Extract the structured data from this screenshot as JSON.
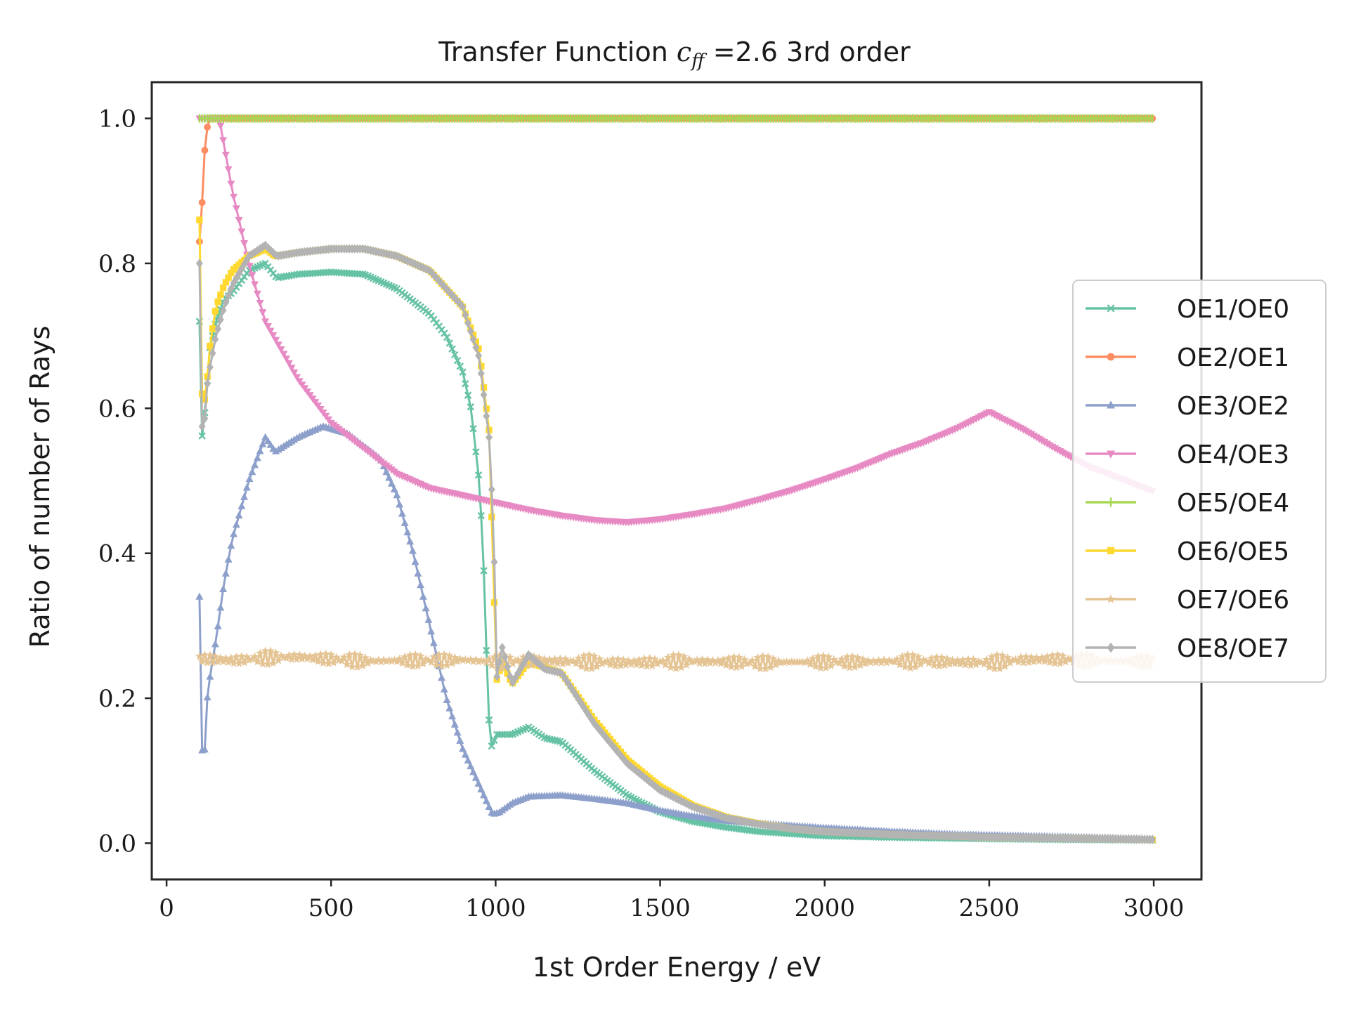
{
  "chart_data": {
    "type": "line",
    "title_main": "Transfer Function ",
    "title_math": "c",
    "title_math_sub": "ff",
    "title_rest": " =2.6 3rd order",
    "xlabel": "1st Order Energy / eV",
    "ylabel": "Ratio of number of Rays",
    "xlim": [
      -45,
      3145
    ],
    "ylim": [
      -0.05,
      1.05
    ],
    "xticks": [
      0,
      500,
      1000,
      1500,
      2000,
      2500,
      3000
    ],
    "xtick_labels": [
      "0",
      "500",
      "1000",
      "1500",
      "2000",
      "2500",
      "3000"
    ],
    "yticks": [
      0.0,
      0.2,
      0.4,
      0.6,
      0.8,
      1.0
    ],
    "ytick_labels": [
      "0.0",
      "0.2",
      "0.4",
      "0.6",
      "0.8",
      "1.0"
    ],
    "grid": false,
    "legend_position": "right",
    "series": [
      {
        "name": "OE1/OE0",
        "color": "#66c2a5",
        "marker": "x",
        "points": [
          [
            100,
            0.72
          ],
          [
            105,
            0.55
          ],
          [
            110,
            0.57
          ],
          [
            120,
            0.61
          ],
          [
            130,
            0.68
          ],
          [
            150,
            0.72
          ],
          [
            175,
            0.75
          ],
          [
            200,
            0.76
          ],
          [
            250,
            0.79
          ],
          [
            300,
            0.8
          ],
          [
            335,
            0.78
          ],
          [
            400,
            0.785
          ],
          [
            500,
            0.788
          ],
          [
            600,
            0.785
          ],
          [
            700,
            0.765
          ],
          [
            800,
            0.73
          ],
          [
            850,
            0.7
          ],
          [
            900,
            0.65
          ],
          [
            925,
            0.6
          ],
          [
            950,
            0.5
          ],
          [
            960,
            0.42
          ],
          [
            970,
            0.31
          ],
          [
            975,
            0.2
          ],
          [
            985,
            0.14
          ],
          [
            990,
            0.13
          ],
          [
            1000,
            0.15
          ],
          [
            1050,
            0.15
          ],
          [
            1100,
            0.16
          ],
          [
            1150,
            0.145
          ],
          [
            1200,
            0.14
          ],
          [
            1300,
            0.1
          ],
          [
            1400,
            0.066
          ],
          [
            1500,
            0.043
          ],
          [
            1600,
            0.03
          ],
          [
            1700,
            0.022
          ],
          [
            1800,
            0.016
          ],
          [
            2000,
            0.01
          ],
          [
            2200,
            0.008
          ],
          [
            2500,
            0.006
          ],
          [
            2700,
            0.005
          ],
          [
            3000,
            0.004
          ]
        ]
      },
      {
        "name": "OE2/OE1",
        "color": "#fc8d62",
        "marker": "o",
        "points": [
          [
            100,
            0.83
          ],
          [
            105,
            0.86
          ],
          [
            110,
            0.9
          ],
          [
            115,
            0.95
          ],
          [
            120,
            0.98
          ],
          [
            130,
            1.0
          ],
          [
            3000,
            1.0
          ]
        ]
      },
      {
        "name": "OE3/OE2",
        "color": "#8da0cb",
        "marker": "^",
        "points": [
          [
            100,
            0.34
          ],
          [
            105,
            0.17
          ],
          [
            110,
            0.1
          ],
          [
            115,
            0.12
          ],
          [
            125,
            0.21
          ],
          [
            150,
            0.28
          ],
          [
            175,
            0.36
          ],
          [
            200,
            0.42
          ],
          [
            250,
            0.5
          ],
          [
            300,
            0.56
          ],
          [
            330,
            0.54
          ],
          [
            400,
            0.56
          ],
          [
            475,
            0.575
          ],
          [
            550,
            0.565
          ],
          [
            650,
            0.53
          ],
          [
            700,
            0.48
          ],
          [
            750,
            0.4
          ],
          [
            800,
            0.3
          ],
          [
            850,
            0.2
          ],
          [
            900,
            0.13
          ],
          [
            950,
            0.08
          ],
          [
            990,
            0.04
          ],
          [
            1010,
            0.042
          ],
          [
            1050,
            0.055
          ],
          [
            1100,
            0.064
          ],
          [
            1200,
            0.066
          ],
          [
            1300,
            0.061
          ],
          [
            1400,
            0.055
          ],
          [
            1500,
            0.045
          ],
          [
            1600,
            0.037
          ],
          [
            1700,
            0.031
          ],
          [
            1800,
            0.027
          ],
          [
            2000,
            0.021
          ],
          [
            2200,
            0.016
          ],
          [
            2400,
            0.012
          ],
          [
            2600,
            0.01
          ],
          [
            2800,
            0.008
          ],
          [
            3000,
            0.006
          ]
        ]
      },
      {
        "name": "OE4/OE3",
        "color": "#e78ac3",
        "marker": "v",
        "points": [
          [
            100,
            1.0
          ],
          [
            160,
            1.0
          ],
          [
            200,
            0.9
          ],
          [
            250,
            0.8
          ],
          [
            300,
            0.72
          ],
          [
            400,
            0.64
          ],
          [
            500,
            0.58
          ],
          [
            600,
            0.545
          ],
          [
            700,
            0.51
          ],
          [
            800,
            0.49
          ],
          [
            900,
            0.48
          ],
          [
            1000,
            0.47
          ],
          [
            1100,
            0.46
          ],
          [
            1200,
            0.452
          ],
          [
            1300,
            0.446
          ],
          [
            1400,
            0.443
          ],
          [
            1500,
            0.447
          ],
          [
            1600,
            0.454
          ],
          [
            1700,
            0.462
          ],
          [
            1800,
            0.474
          ],
          [
            1900,
            0.487
          ],
          [
            2000,
            0.502
          ],
          [
            2100,
            0.518
          ],
          [
            2200,
            0.537
          ],
          [
            2300,
            0.553
          ],
          [
            2400,
            0.572
          ],
          [
            2500,
            0.595
          ],
          [
            2600,
            0.572
          ],
          [
            2700,
            0.545
          ],
          [
            2800,
            0.52
          ],
          [
            2900,
            0.503
          ],
          [
            3000,
            0.485
          ]
        ]
      },
      {
        "name": "OE5/OE4",
        "color": "#a6d854",
        "marker": "|",
        "points": [
          [
            100,
            1.0
          ],
          [
            3000,
            1.0
          ]
        ]
      },
      {
        "name": "OE6/OE5",
        "color": "#ffd92f",
        "marker": "s",
        "points": [
          [
            100,
            0.86
          ],
          [
            103,
            0.74
          ],
          [
            106,
            0.64
          ],
          [
            110,
            0.6
          ],
          [
            120,
            0.62
          ],
          [
            130,
            0.68
          ],
          [
            150,
            0.74
          ],
          [
            175,
            0.77
          ],
          [
            200,
            0.79
          ],
          [
            250,
            0.81
          ],
          [
            300,
            0.82
          ],
          [
            330,
            0.81
          ],
          [
            400,
            0.815
          ],
          [
            500,
            0.82
          ],
          [
            600,
            0.82
          ],
          [
            700,
            0.81
          ],
          [
            800,
            0.79
          ],
          [
            900,
            0.74
          ],
          [
            950,
            0.68
          ],
          [
            980,
            0.57
          ],
          [
            990,
            0.42
          ],
          [
            995,
            0.36
          ],
          [
            1000,
            0.22
          ],
          [
            1020,
            0.25
          ],
          [
            1050,
            0.22
          ],
          [
            1100,
            0.25
          ],
          [
            1200,
            0.235
          ],
          [
            1300,
            0.17
          ],
          [
            1400,
            0.115
          ],
          [
            1500,
            0.078
          ],
          [
            1600,
            0.052
          ],
          [
            1700,
            0.036
          ],
          [
            1800,
            0.027
          ],
          [
            1900,
            0.02
          ],
          [
            2000,
            0.016
          ],
          [
            2200,
            0.012
          ],
          [
            2500,
            0.008
          ],
          [
            3000,
            0.005
          ]
        ]
      },
      {
        "name": "OE7/OE6",
        "color": "#e5c494",
        "marker": "*",
        "noise": 0.006,
        "points": [
          [
            100,
            0.255
          ],
          [
            200,
            0.252
          ],
          [
            300,
            0.256
          ],
          [
            400,
            0.257
          ],
          [
            500,
            0.254
          ],
          [
            600,
            0.251
          ],
          [
            700,
            0.252
          ],
          [
            800,
            0.252
          ],
          [
            900,
            0.253
          ],
          [
            1000,
            0.25
          ],
          [
            1100,
            0.252
          ],
          [
            1200,
            0.251
          ],
          [
            1300,
            0.25
          ],
          [
            1400,
            0.249
          ],
          [
            1500,
            0.25
          ],
          [
            1600,
            0.251
          ],
          [
            1700,
            0.25
          ],
          [
            1800,
            0.249
          ],
          [
            1900,
            0.25
          ],
          [
            2000,
            0.25
          ],
          [
            2100,
            0.25
          ],
          [
            2200,
            0.251
          ],
          [
            2300,
            0.251
          ],
          [
            2400,
            0.25
          ],
          [
            2500,
            0.249
          ],
          [
            2600,
            0.253
          ],
          [
            2700,
            0.254
          ],
          [
            2800,
            0.252
          ],
          [
            2900,
            0.251
          ],
          [
            3000,
            0.251
          ]
        ]
      },
      {
        "name": "OE8/OE7",
        "color": "#b3b3b3",
        "marker": "D",
        "points": [
          [
            100,
            0.8
          ],
          [
            103,
            0.69
          ],
          [
            106,
            0.6
          ],
          [
            110,
            0.55
          ],
          [
            115,
            0.58
          ],
          [
            125,
            0.64
          ],
          [
            150,
            0.7
          ],
          [
            175,
            0.74
          ],
          [
            200,
            0.77
          ],
          [
            250,
            0.81
          ],
          [
            300,
            0.825
          ],
          [
            335,
            0.81
          ],
          [
            400,
            0.815
          ],
          [
            500,
            0.82
          ],
          [
            600,
            0.82
          ],
          [
            700,
            0.81
          ],
          [
            800,
            0.79
          ],
          [
            900,
            0.74
          ],
          [
            950,
            0.67
          ],
          [
            980,
            0.56
          ],
          [
            990,
            0.47
          ],
          [
            995,
            0.43
          ],
          [
            1000,
            0.22
          ],
          [
            1020,
            0.27
          ],
          [
            1050,
            0.22
          ],
          [
            1100,
            0.26
          ],
          [
            1150,
            0.24
          ],
          [
            1200,
            0.235
          ],
          [
            1300,
            0.165
          ],
          [
            1400,
            0.11
          ],
          [
            1500,
            0.073
          ],
          [
            1600,
            0.05
          ],
          [
            1700,
            0.035
          ],
          [
            1800,
            0.026
          ],
          [
            1900,
            0.02
          ],
          [
            2000,
            0.016
          ],
          [
            2200,
            0.012
          ],
          [
            2500,
            0.008
          ],
          [
            3000,
            0.005
          ]
        ]
      }
    ]
  }
}
